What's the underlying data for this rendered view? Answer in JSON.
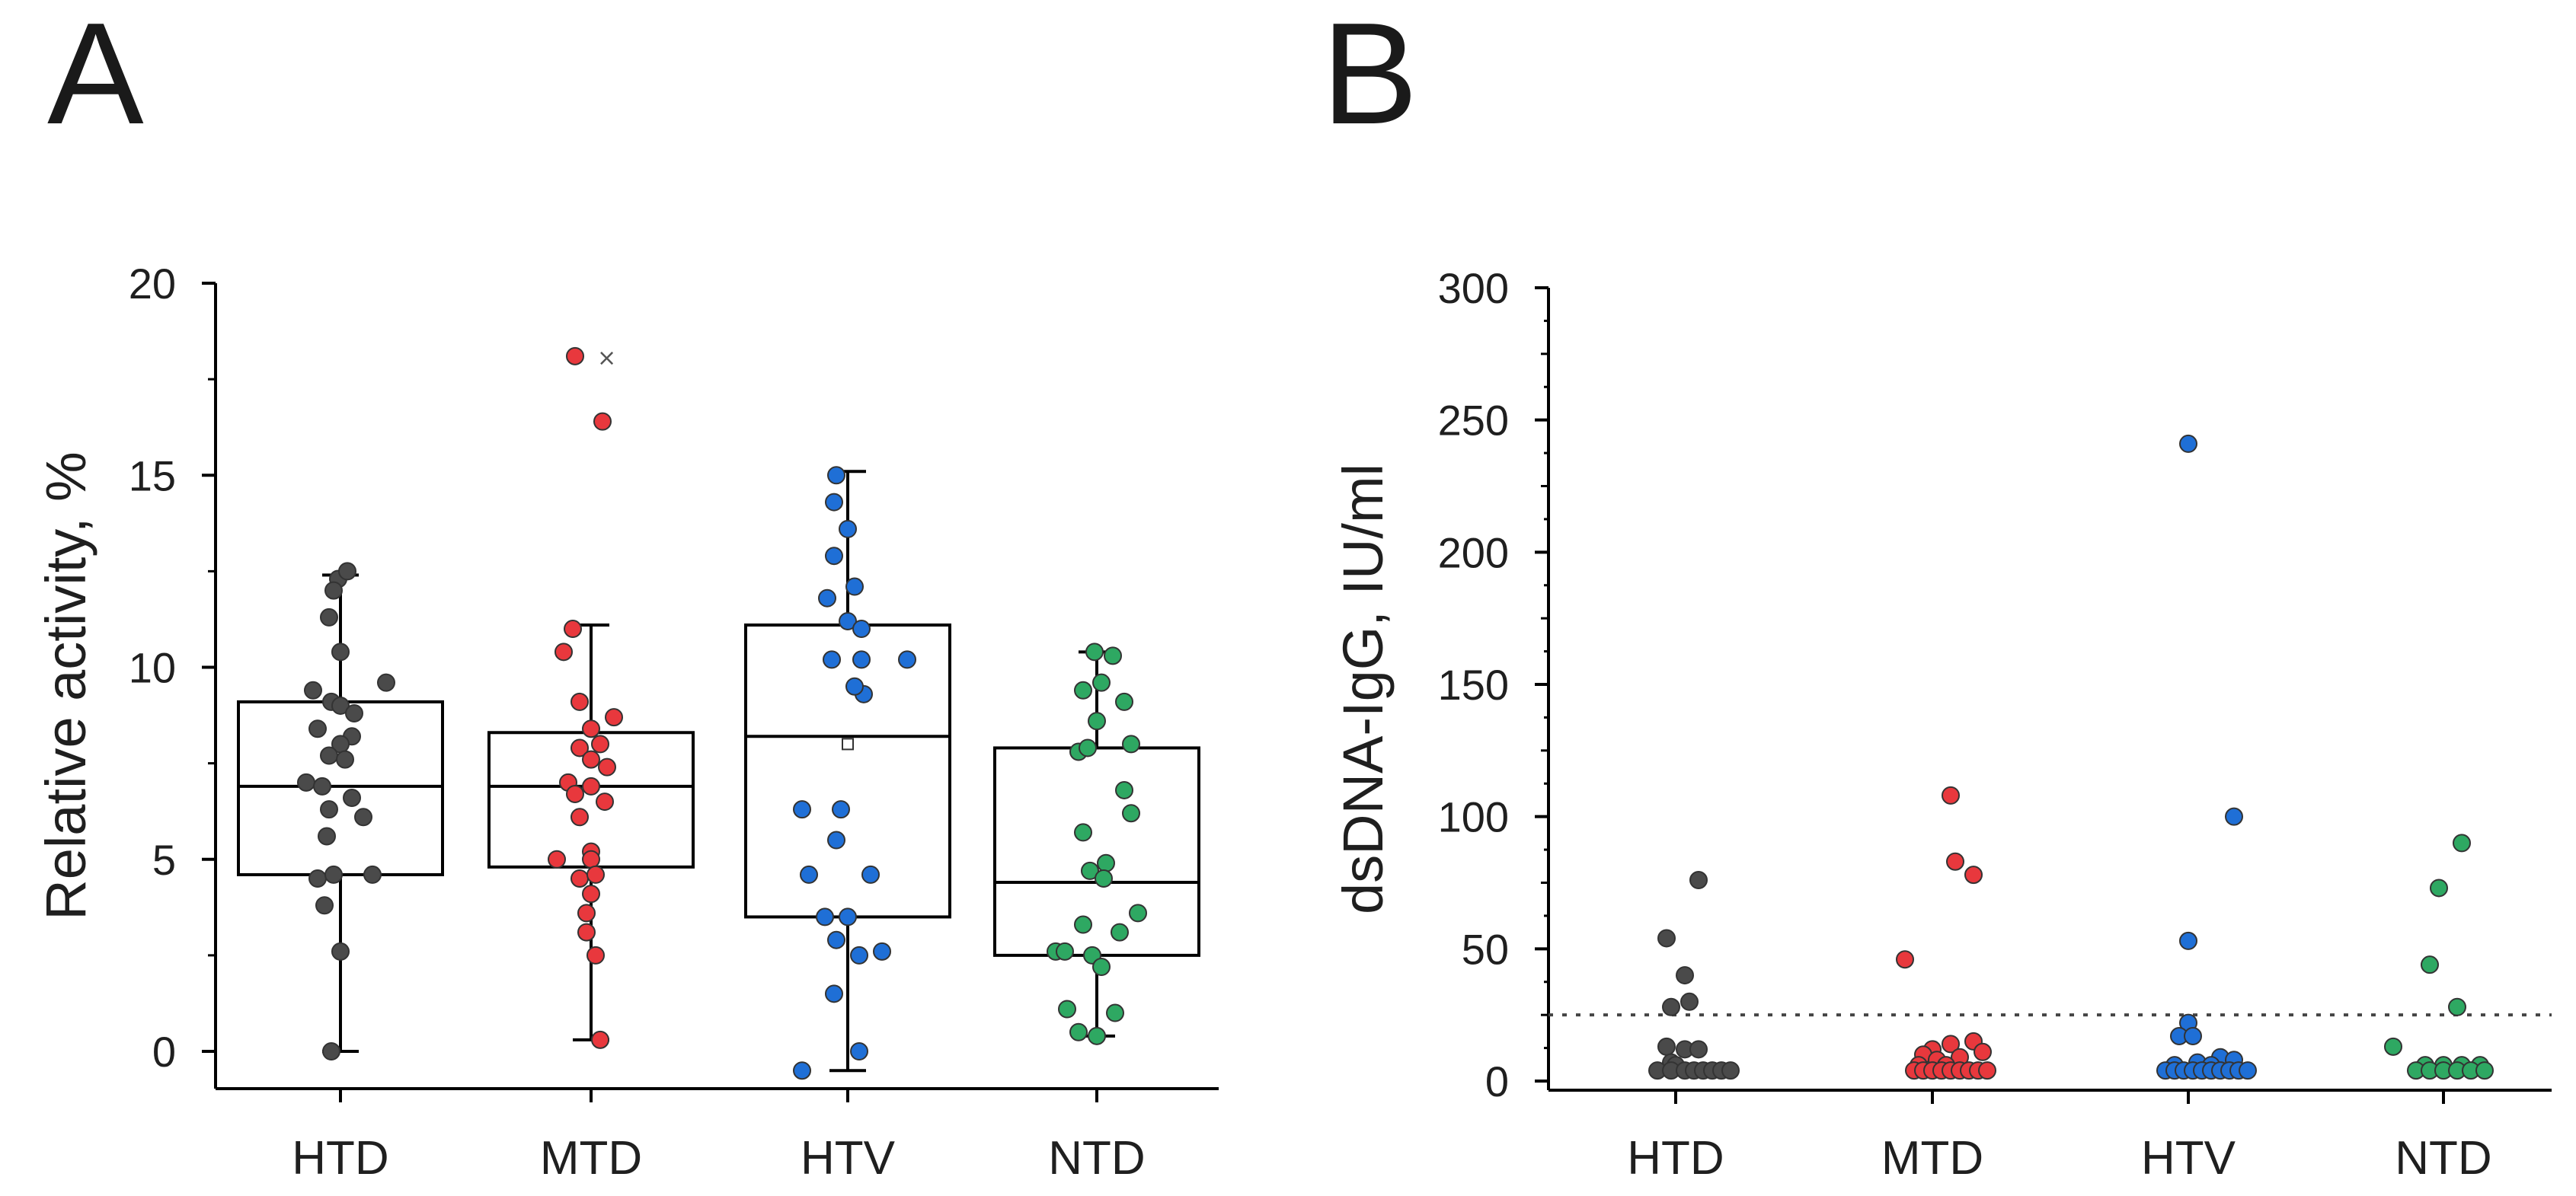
{
  "panels": {
    "a_label": "A",
    "b_label": "B"
  },
  "chart_data": [
    {
      "type": "box-scatter",
      "panel": "A",
      "ylabel": "Relative activity, %",
      "ylim": [
        -0.5,
        20
      ],
      "yticks": [
        0,
        5,
        10,
        15,
        20
      ],
      "categories": [
        "HTD",
        "MTD",
        "HTV",
        "NTD"
      ],
      "colors": [
        "#4a4a4a",
        "#e8383d",
        "#1f6fd6",
        "#2ea862"
      ],
      "boxes": [
        {
          "q1": 4.6,
          "median": 6.9,
          "q3": 9.1,
          "whisker_low": 0,
          "whisker_high": 12.4,
          "mean_marker": ""
        },
        {
          "q1": 4.8,
          "median": 6.9,
          "q3": 8.3,
          "whisker_low": 0.3,
          "whisker_high": 11.1,
          "mean_marker": "×"
        },
        {
          "q1": 3.5,
          "median": 8.2,
          "q3": 11.1,
          "whisker_low": -0.5,
          "whisker_high": 15.1,
          "mean_marker": "□"
        },
        {
          "q1": 2.5,
          "median": 4.4,
          "q3": 7.9,
          "whisker_low": 0.4,
          "whisker_high": 10.4,
          "mean_marker": ""
        }
      ],
      "series": [
        {
          "name": "HTD",
          "points": [
            [
              -0.01,
              12.3
            ],
            [
              0.03,
              12.5
            ],
            [
              -0.03,
              12.0
            ],
            [
              -0.05,
              11.3
            ],
            [
              0.0,
              10.4
            ],
            [
              -0.12,
              9.4
            ],
            [
              0.2,
              9.6
            ],
            [
              -0.04,
              9.1
            ],
            [
              0.0,
              9.0
            ],
            [
              0.06,
              8.8
            ],
            [
              -0.1,
              8.4
            ],
            [
              0.05,
              8.2
            ],
            [
              0.0,
              8.0
            ],
            [
              -0.05,
              7.7
            ],
            [
              0.02,
              7.6
            ],
            [
              -0.15,
              7.0
            ],
            [
              -0.08,
              6.9
            ],
            [
              0.05,
              6.6
            ],
            [
              -0.05,
              6.3
            ],
            [
              0.1,
              6.1
            ],
            [
              -0.06,
              5.6
            ],
            [
              -0.1,
              4.5
            ],
            [
              0.14,
              4.6
            ],
            [
              -0.03,
              4.6
            ],
            [
              -0.07,
              3.8
            ],
            [
              0.0,
              2.6
            ],
            [
              -0.04,
              0.0
            ]
          ]
        },
        {
          "name": "MTD",
          "points": [
            [
              -0.07,
              18.1
            ],
            [
              0.05,
              16.4
            ],
            [
              -0.08,
              11.0
            ],
            [
              -0.12,
              10.4
            ],
            [
              -0.05,
              9.1
            ],
            [
              0.1,
              8.7
            ],
            [
              0.0,
              8.4
            ],
            [
              0.04,
              8.0
            ],
            [
              -0.05,
              7.9
            ],
            [
              0.0,
              7.6
            ],
            [
              0.07,
              7.4
            ],
            [
              -0.1,
              7.0
            ],
            [
              0.0,
              6.9
            ],
            [
              -0.07,
              6.7
            ],
            [
              0.06,
              6.5
            ],
            [
              -0.05,
              6.1
            ],
            [
              0.0,
              5.2
            ],
            [
              -0.15,
              5.0
            ],
            [
              0.0,
              5.0
            ],
            [
              -0.05,
              4.5
            ],
            [
              0.02,
              4.6
            ],
            [
              0.0,
              4.1
            ],
            [
              -0.02,
              3.6
            ],
            [
              -0.02,
              3.1
            ],
            [
              0.02,
              2.5
            ],
            [
              0.04,
              0.3
            ]
          ]
        },
        {
          "name": "HTV",
          "points": [
            [
              -0.05,
              15.0
            ],
            [
              -0.06,
              14.3
            ],
            [
              0.0,
              13.6
            ],
            [
              -0.06,
              12.9
            ],
            [
              0.03,
              12.1
            ],
            [
              -0.09,
              11.8
            ],
            [
              0.0,
              11.2
            ],
            [
              0.06,
              11.0
            ],
            [
              -0.07,
              10.2
            ],
            [
              0.06,
              10.2
            ],
            [
              0.26,
              10.2
            ],
            [
              0.07,
              9.3
            ],
            [
              0.03,
              9.5
            ],
            [
              -0.2,
              6.3
            ],
            [
              -0.03,
              6.3
            ],
            [
              -0.05,
              5.5
            ],
            [
              -0.17,
              4.6
            ],
            [
              0.1,
              4.6
            ],
            [
              -0.1,
              3.5
            ],
            [
              0.0,
              3.5
            ],
            [
              -0.05,
              2.9
            ],
            [
              0.15,
              2.6
            ],
            [
              0.05,
              2.5
            ],
            [
              -0.06,
              1.5
            ],
            [
              0.05,
              0.0
            ],
            [
              -0.2,
              -0.5
            ]
          ]
        },
        {
          "name": "NTD",
          "points": [
            [
              -0.01,
              10.4
            ],
            [
              0.07,
              10.3
            ],
            [
              -0.06,
              9.4
            ],
            [
              0.02,
              9.6
            ],
            [
              0.12,
              9.1
            ],
            [
              0.0,
              8.6
            ],
            [
              0.15,
              8.0
            ],
            [
              -0.08,
              7.8
            ],
            [
              -0.04,
              7.9
            ],
            [
              0.12,
              6.8
            ],
            [
              0.15,
              6.2
            ],
            [
              -0.06,
              5.7
            ],
            [
              0.04,
              4.9
            ],
            [
              -0.03,
              4.7
            ],
            [
              0.03,
              4.5
            ],
            [
              0.18,
              3.6
            ],
            [
              -0.06,
              3.3
            ],
            [
              0.1,
              3.1
            ],
            [
              -0.18,
              2.6
            ],
            [
              -0.02,
              2.5
            ],
            [
              -0.14,
              2.6
            ],
            [
              0.02,
              2.2
            ],
            [
              -0.13,
              1.1
            ],
            [
              0.08,
              1.0
            ],
            [
              0.0,
              0.4
            ],
            [
              -0.08,
              0.5
            ]
          ]
        }
      ]
    },
    {
      "type": "scatter",
      "panel": "B",
      "ylabel": "dsDNA-IgG, IU/ml",
      "ylim": [
        0,
        300
      ],
      "yticks": [
        0,
        50,
        100,
        150,
        200,
        250,
        300
      ],
      "categories": [
        "HTD",
        "MTD",
        "HTV",
        "NTD"
      ],
      "colors": [
        "#4a4a4a",
        "#e8383d",
        "#1f6fd6",
        "#2ea862"
      ],
      "threshold": 25,
      "series": [
        {
          "name": "HTD",
          "points": [
            [
              0.1,
              76
            ],
            [
              -0.04,
              54
            ],
            [
              0.04,
              40
            ],
            [
              0.06,
              30
            ],
            [
              -0.02,
              28
            ],
            [
              -0.04,
              13
            ],
            [
              0.04,
              12
            ],
            [
              0.1,
              12
            ],
            [
              -0.02,
              7
            ],
            [
              0.0,
              6
            ],
            [
              -0.08,
              4
            ],
            [
              -0.02,
              4
            ],
            [
              0.04,
              4
            ],
            [
              0.08,
              4
            ],
            [
              0.12,
              4
            ],
            [
              0.16,
              4
            ],
            [
              0.2,
              4
            ],
            [
              0.24,
              4
            ]
          ]
        },
        {
          "name": "MTD",
          "points": [
            [
              0.08,
              108
            ],
            [
              0.1,
              83
            ],
            [
              0.18,
              78
            ],
            [
              -0.12,
              46
            ],
            [
              0.18,
              15
            ],
            [
              0.08,
              14
            ],
            [
              0.0,
              12
            ],
            [
              0.22,
              11
            ],
            [
              -0.04,
              10
            ],
            [
              0.12,
              9
            ],
            [
              0.02,
              8
            ],
            [
              -0.06,
              6
            ],
            [
              0.06,
              6
            ],
            [
              -0.08,
              4
            ],
            [
              -0.04,
              4
            ],
            [
              0.0,
              4
            ],
            [
              0.04,
              4
            ],
            [
              0.08,
              4
            ],
            [
              0.12,
              4
            ],
            [
              0.16,
              4
            ],
            [
              0.2,
              4
            ],
            [
              0.24,
              4
            ]
          ]
        },
        {
          "name": "HTV",
          "points": [
            [
              0.0,
              241
            ],
            [
              0.2,
              100
            ],
            [
              0.0,
              53
            ],
            [
              0.0,
              22
            ],
            [
              -0.04,
              17
            ],
            [
              0.02,
              17
            ],
            [
              0.14,
              9
            ],
            [
              0.2,
              8
            ],
            [
              0.04,
              7
            ],
            [
              -0.06,
              6
            ],
            [
              0.1,
              6
            ],
            [
              -0.1,
              4
            ],
            [
              -0.06,
              4
            ],
            [
              -0.02,
              4
            ],
            [
              0.02,
              4
            ],
            [
              0.06,
              4
            ],
            [
              0.1,
              4
            ],
            [
              0.14,
              4
            ],
            [
              0.18,
              4
            ],
            [
              0.22,
              4
            ],
            [
              0.26,
              4
            ]
          ]
        },
        {
          "name": "NTD",
          "points": [
            [
              0.08,
              90
            ],
            [
              -0.02,
              73
            ],
            [
              -0.06,
              44
            ],
            [
              0.06,
              28
            ],
            [
              -0.22,
              13
            ],
            [
              -0.08,
              6
            ],
            [
              0.0,
              6
            ],
            [
              0.08,
              6
            ],
            [
              0.16,
              6
            ],
            [
              -0.12,
              4
            ],
            [
              -0.06,
              4
            ],
            [
              0.0,
              4
            ],
            [
              0.06,
              4
            ],
            [
              0.12,
              4
            ],
            [
              0.18,
              4
            ]
          ]
        }
      ]
    }
  ]
}
